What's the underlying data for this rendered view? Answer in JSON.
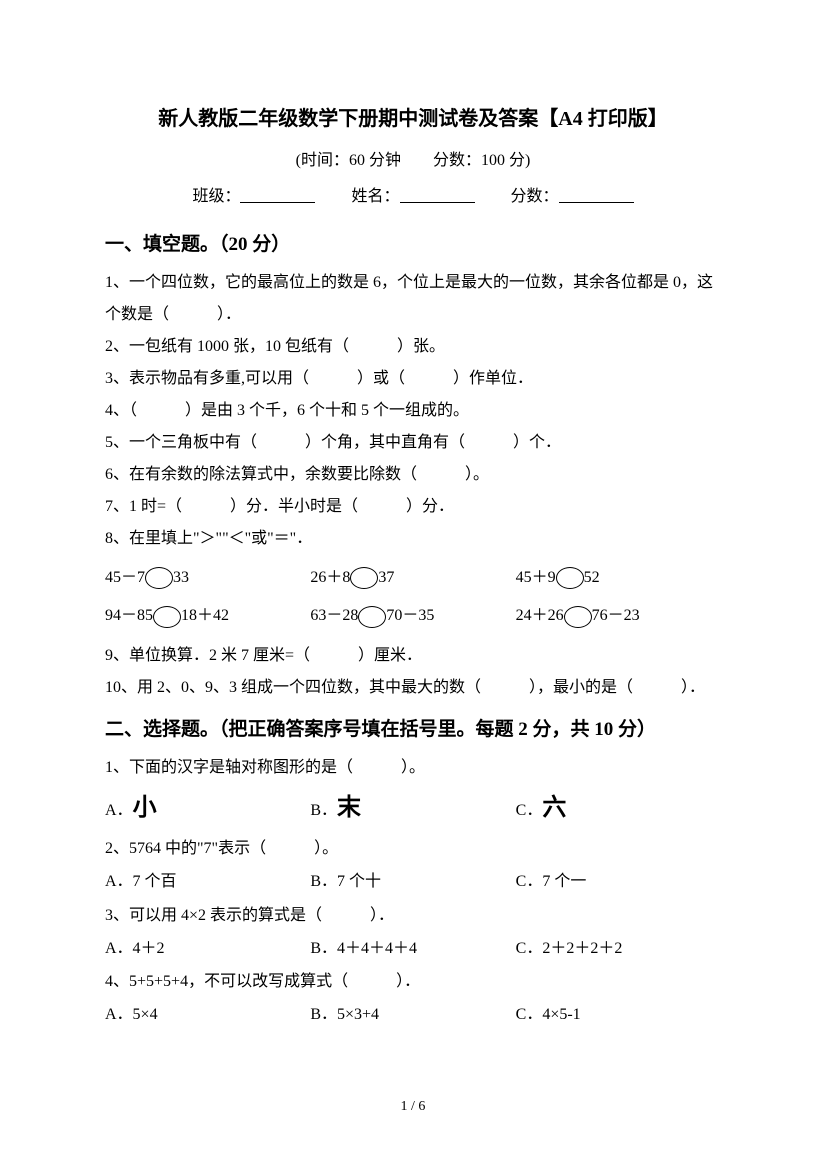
{
  "title": "新人教版二年级数学下册期中测试卷及答案【A4 打印版】",
  "subtitle": "(时间：60 分钟　　分数：100 分)",
  "info": {
    "class_label": "班级：",
    "name_label": "姓名：",
    "score_label": "分数："
  },
  "section1": {
    "title": "一、填空题。（20 分）",
    "q1": "1、一个四位数，它的最高位上的数是 6，个位上是最大的一位数，其余各位都是 0，这个数是（　　　）．",
    "q2": "2、一包纸有 1000 张，10 包纸有（　　　）张。",
    "q3": "3、表示物品有多重,可以用（　　　）或（　　　）作单位．",
    "q4": "4、（　　　）是由 3 个千，6 个十和 5 个一组成的。",
    "q5": "5、一个三角板中有（　　　）个角，其中直角有（　　　）个．",
    "q6": "6、在有余数的除法算式中，余数要比除数（　　　）。",
    "q7": "7、1 时=（　　　）分．半小时是（　　　）分．",
    "q8": "8、在里填上\"＞\"\"＜\"或\"＝\"．",
    "q8_row1": {
      "a": "45－7",
      "a2": "33",
      "b": "26＋8",
      "b2": "37",
      "c": "45＋9",
      "c2": "52"
    },
    "q8_row2": {
      "a": "94－85",
      "a2": "18＋42",
      "b": "63－28",
      "b2": "70－35",
      "c": "24＋26",
      "c2": "76－23"
    },
    "q9": "9、单位换算．2 米 7 厘米=（　　　）厘米．",
    "q10": "10、用 2、0、9、3 组成一个四位数，其中最大的数（　　　），最小的是（　　　）．"
  },
  "section2": {
    "title": "二、选择题。（把正确答案序号填在括号里。每题 2 分，共 10 分）",
    "q1": "1、下面的汉字是轴对称图形的是（　　　）。",
    "q1_choices": {
      "a_label": "A．",
      "a": "小",
      "b_label": "B．",
      "b": "末",
      "c_label": "C．",
      "c": "六"
    },
    "q2": "2、5764 中的\"7\"表示（　　　）。",
    "q2_choices": {
      "a": "A．7 个百",
      "b": "B．7 个十",
      "c": "C．7 个一"
    },
    "q3": "3、可以用 4×2 表示的算式是（　　　）．",
    "q3_choices": {
      "a": "A．4＋2",
      "b": "B．4＋4＋4＋4",
      "c": "C．2＋2＋2＋2"
    },
    "q4": "4、5+5+5+4，不可以改写成算式（　　　）．",
    "q4_choices": {
      "a": "A．5×4",
      "b": "B．5×3+4",
      "c": "C．4×5-1"
    }
  },
  "page_num": "1 / 6"
}
